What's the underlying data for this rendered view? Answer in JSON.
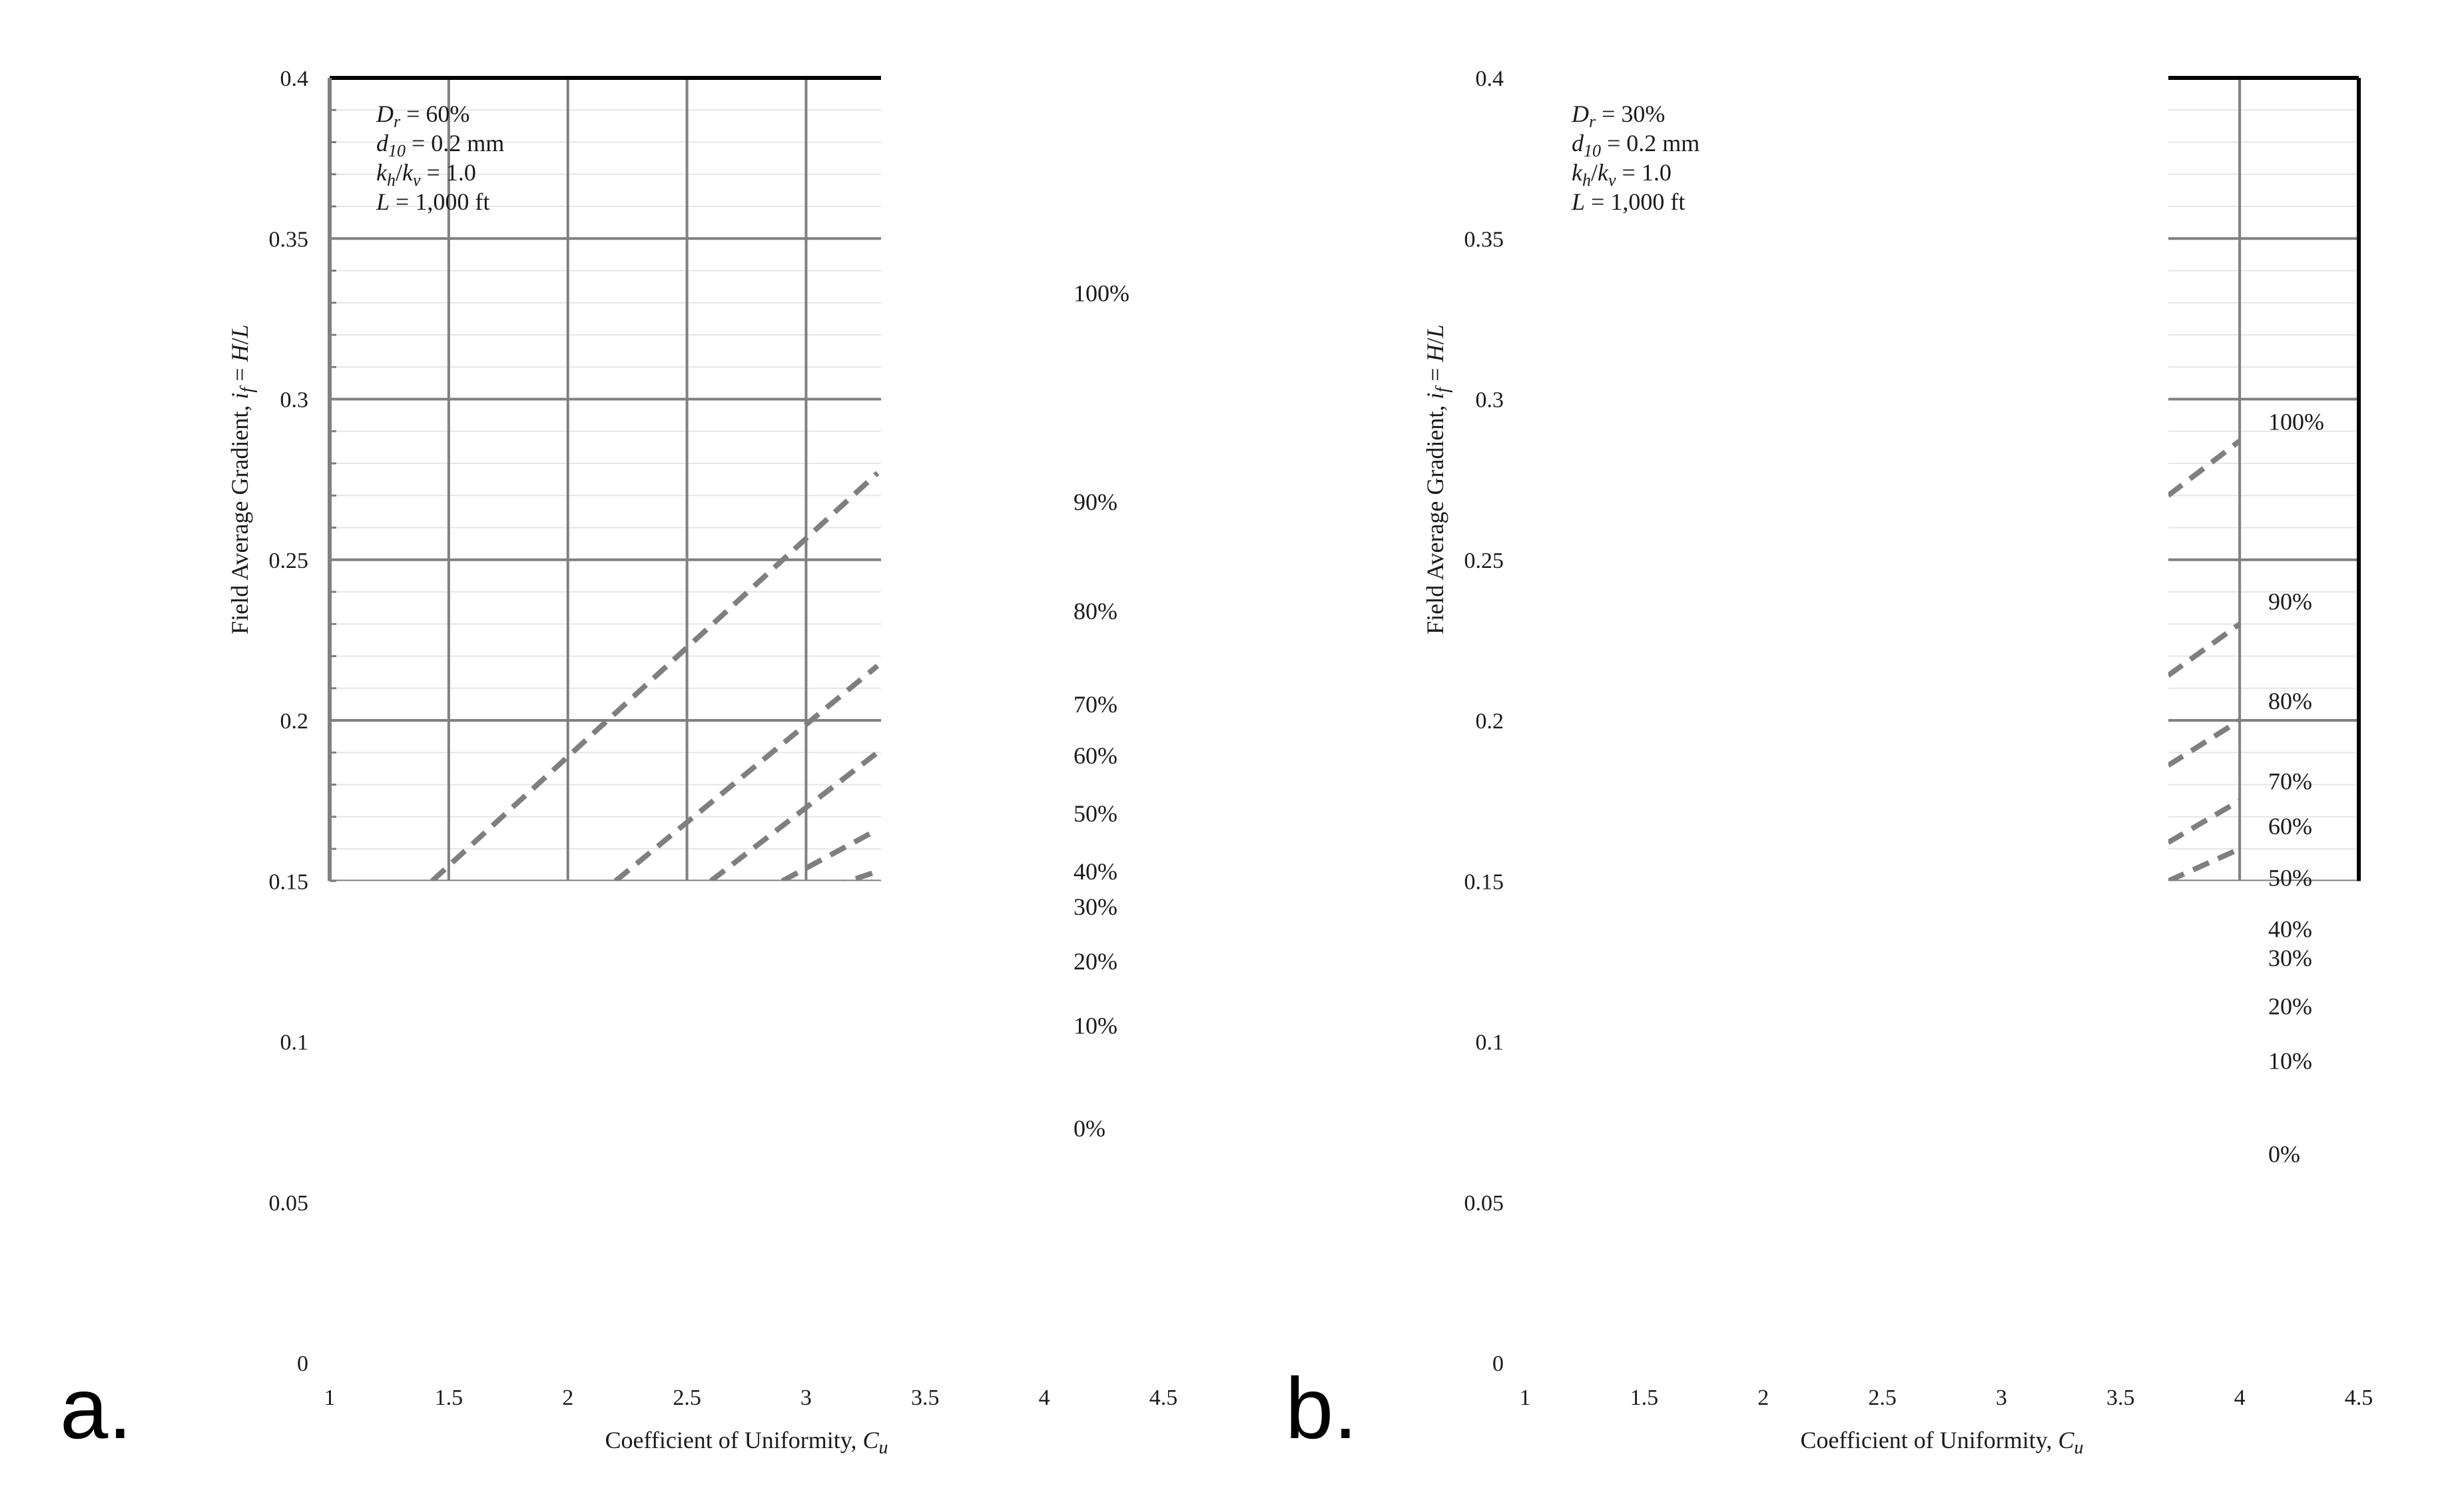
{
  "figure": {
    "panels": [
      {
        "letter": "a.",
        "annotation": [
          {
            "var": "D",
            "sub": "r",
            "rest": " = 60%"
          },
          {
            "var": "d",
            "sub": "10",
            "rest": " = 0.2 mm"
          },
          {
            "var": "k",
            "sub": "h",
            "mid": "/",
            "var2": "k",
            "sub2": "v",
            "rest": " = 1.0"
          },
          {
            "var": "L",
            "sub": "",
            "rest": " = 1,000 ft"
          }
        ]
      },
      {
        "letter": "b.",
        "annotation": [
          {
            "var": "D",
            "sub": "r",
            "rest": " = 30%"
          },
          {
            "var": "d",
            "sub": "10",
            "rest": " = 0.2 mm"
          },
          {
            "var": "k",
            "sub": "h",
            "mid": "/",
            "var2": "k",
            "sub2": "v",
            "rest": " = 1.0"
          },
          {
            "var": "L",
            "sub": "",
            "rest": " = 1,000 ft"
          }
        ]
      }
    ],
    "colors": {
      "dashed_line": "#7f7f7f",
      "major_grid": "#808080",
      "minor_grid": "#e6e6e6",
      "border": "#000000"
    }
  },
  "chart_data": [
    {
      "type": "line",
      "xlabel": "Coefficient of Uniformity, C_u",
      "ylabel": "Field Average Gradient, i_f = H/L",
      "xlim": [
        1,
        4.5
      ],
      "ylim": [
        0,
        0.4
      ],
      "xticks": [
        "1",
        "1.5",
        "2",
        "2.5",
        "3",
        "3.5",
        "4",
        "4.5"
      ],
      "yticks": [
        "0",
        "0.05",
        "0.1",
        "0.15",
        "0.2",
        "0.25",
        "0.3",
        "0.35",
        "0.4"
      ],
      "visible_x_window": [
        1,
        3.3
      ],
      "visible_y_window": [
        0.15,
        0.4
      ],
      "line_style": "dashed",
      "series": [
        {
          "name": "100%",
          "label_y": 0.333,
          "x": [
            1.43,
            3.3
          ],
          "y": [
            0.15,
            0.277
          ]
        },
        {
          "name": "90%",
          "label_y": 0.268,
          "x": [
            2.2,
            3.3
          ],
          "y": [
            0.15,
            0.217
          ]
        },
        {
          "name": "80%",
          "label_y": 0.234,
          "x": [
            2.6,
            3.3
          ],
          "y": [
            0.15,
            0.19
          ]
        },
        {
          "name": "70%",
          "label_y": 0.205,
          "x": [
            2.9,
            3.3
          ],
          "y": [
            0.15,
            0.166
          ]
        },
        {
          "name": "60%",
          "label_y": 0.189,
          "x": [
            3.1,
            3.3
          ],
          "y": [
            0.148,
            0.153
          ]
        },
        {
          "name": "50%",
          "label_y": 0.171,
          "x": [],
          "y": []
        },
        {
          "name": "40%",
          "label_y": 0.153,
          "x": [],
          "y": []
        },
        {
          "name": "30%",
          "label_y": 0.142,
          "x": [],
          "y": []
        },
        {
          "name": "20%",
          "label_y": 0.125,
          "x": [],
          "y": []
        },
        {
          "name": "10%",
          "label_y": 0.105,
          "x": [],
          "y": []
        },
        {
          "name": "0%",
          "label_y": 0.073,
          "x": [],
          "y": []
        }
      ]
    },
    {
      "type": "line",
      "xlabel": "Coefficient of Uniformity, C_u",
      "ylabel": "Field Average Gradient, i_f = H/L",
      "xlim": [
        1,
        4.5
      ],
      "ylim": [
        0,
        0.4
      ],
      "xticks": [
        "1",
        "1.5",
        "2",
        "2.5",
        "3",
        "3.5",
        "4",
        "4.5"
      ],
      "yticks": [
        "0",
        "0.05",
        "0.1",
        "0.15",
        "0.2",
        "0.25",
        "0.3",
        "0.35",
        "0.4"
      ],
      "visible_x_window": [
        3.7,
        4.5
      ],
      "visible_y_window": [
        0.15,
        0.4
      ],
      "line_style": "dashed",
      "series": [
        {
          "name": "100%",
          "label_y": 0.293,
          "x": [
            3.7,
            4.0
          ],
          "y": [
            0.27,
            0.287
          ]
        },
        {
          "name": "90%",
          "label_y": 0.237,
          "x": [
            3.7,
            4.0
          ],
          "y": [
            0.214,
            0.23
          ]
        },
        {
          "name": "80%",
          "label_y": 0.206,
          "x": [
            3.7,
            4.0
          ],
          "y": [
            0.186,
            0.2
          ]
        },
        {
          "name": "70%",
          "label_y": 0.181,
          "x": [
            3.7,
            4.0
          ],
          "y": [
            0.162,
            0.175
          ]
        },
        {
          "name": "60%",
          "label_y": 0.167,
          "x": [
            3.7,
            4.0
          ],
          "y": [
            0.15,
            0.16
          ]
        },
        {
          "name": "50%",
          "label_y": 0.151,
          "x": [],
          "y": []
        },
        {
          "name": "40%",
          "label_y": 0.135,
          "x": [],
          "y": []
        },
        {
          "name": "30%",
          "label_y": 0.126,
          "x": [],
          "y": []
        },
        {
          "name": "20%",
          "label_y": 0.111,
          "x": [],
          "y": []
        },
        {
          "name": "10%",
          "label_y": 0.094,
          "x": [],
          "y": []
        },
        {
          "name": "0%",
          "label_y": 0.065,
          "x": [],
          "y": []
        }
      ]
    }
  ]
}
